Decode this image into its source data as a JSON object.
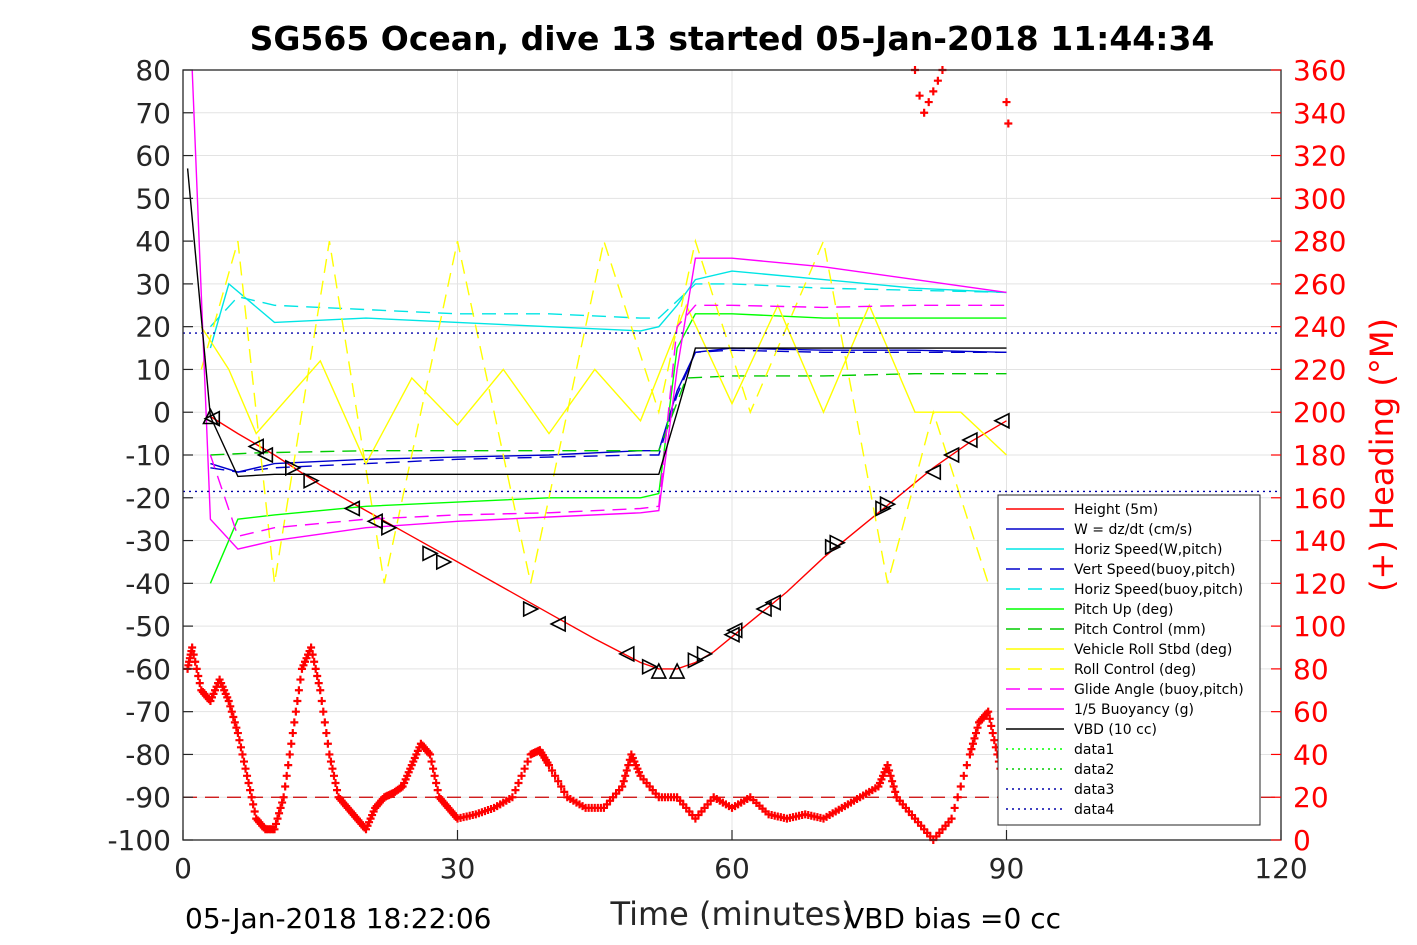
{
  "chart_data": {
    "type": "line",
    "title": "SG565 Ocean, dive 13 started 05-Jan-2018 11:44:34",
    "xlabel": "Time (minutes)",
    "ylabel_right": "(+) Heading (°M)",
    "xlim": [
      0,
      120
    ],
    "ylim": [
      -100,
      80
    ],
    "ylim_right": [
      0,
      360
    ],
    "x_ticks": [
      "0",
      "30",
      "60",
      "90",
      "120"
    ],
    "y_ticks": [
      "80",
      "70",
      "60",
      "50",
      "40",
      "30",
      "20",
      "10",
      "0",
      "-10",
      "-20",
      "-30",
      "-40",
      "-50",
      "-60",
      "-70",
      "-80",
      "-90",
      "-100"
    ],
    "y_ticks_right": [
      "360",
      "340",
      "320",
      "300",
      "280",
      "260",
      "240",
      "220",
      "200",
      "180",
      "160",
      "140",
      "120",
      "100",
      "80",
      "60",
      "40",
      "20",
      "0"
    ],
    "grid": true,
    "legend_position": "bottom-right",
    "footer_left": "05-Jan-2018 18:22:06",
    "footer_right": "VBD bias =0 cc",
    "series": [
      {
        "name": "Height (5m)",
        "color": "#ff0000",
        "style": "solid",
        "x": [
          3,
          6,
          10,
          15,
          20,
          25,
          30,
          35,
          40,
          45,
          50,
          52,
          54,
          56,
          58,
          62,
          66,
          70,
          74,
          78,
          82,
          86,
          90
        ],
        "y": [
          -1,
          -5,
          -10,
          -17,
          -23,
          -29,
          -35,
          -41,
          -47,
          -53,
          -58.5,
          -60,
          -60,
          -58.5,
          -56,
          -49,
          -42,
          -34,
          -27,
          -20,
          -13,
          -7,
          -2
        ]
      },
      {
        "name": "W = dz/dt (cm/s)",
        "color": "#0000cc",
        "style": "solid",
        "x": [
          3,
          6,
          10,
          20,
          30,
          40,
          50,
          52,
          54,
          56,
          60,
          70,
          80,
          90
        ],
        "y": [
          -12,
          -14,
          -12,
          -11,
          -10.5,
          -10,
          -9,
          -9,
          5,
          14,
          15,
          14.5,
          14.5,
          14
        ]
      },
      {
        "name": "Horiz Speed(W,pitch)",
        "color": "#00e5e5",
        "style": "solid",
        "x": [
          3,
          5,
          10,
          20,
          30,
          40,
          50,
          52,
          54,
          56,
          60,
          70,
          80,
          90
        ],
        "y": [
          15,
          30,
          21,
          22,
          21,
          20,
          19,
          20,
          25,
          31,
          33,
          31,
          29,
          28
        ]
      },
      {
        "name": "Vert Speed(buoy,pitch)",
        "color": "#0000cc",
        "style": "dashed",
        "x": [
          3,
          6,
          10,
          20,
          30,
          40,
          50,
          52,
          54,
          56,
          60,
          70,
          80,
          90
        ],
        "y": [
          -13,
          -14,
          -13,
          -12,
          -11,
          -10.5,
          -10,
          -10,
          4,
          14,
          14.5,
          14,
          14,
          14
        ]
      },
      {
        "name": "Horiz Speed(buoy,pitch)",
        "color": "#00e5e5",
        "style": "dashed",
        "x": [
          3,
          6,
          10,
          20,
          30,
          40,
          50,
          52,
          54,
          56,
          60,
          70,
          80,
          90
        ],
        "y": [
          20,
          27,
          25,
          24,
          23,
          23,
          22,
          22,
          26,
          30,
          30,
          29,
          28.5,
          28
        ]
      },
      {
        "name": "Pitch Up (deg)",
        "color": "#00ff00",
        "style": "solid",
        "x": [
          3,
          6,
          10,
          20,
          30,
          40,
          50,
          52,
          54,
          56,
          60,
          70,
          80,
          90
        ],
        "y": [
          -40,
          -25,
          -24,
          -22,
          -21,
          -20,
          -20,
          -19,
          15,
          23,
          23,
          22,
          22,
          22
        ]
      },
      {
        "name": "Pitch Control (mm)",
        "color": "#00cc00",
        "style": "dashed",
        "x": [
          3,
          8,
          20,
          30,
          40,
          50,
          52,
          55,
          60,
          70,
          80,
          90
        ],
        "y": [
          -10,
          -9.5,
          -9,
          -9,
          -9,
          -9,
          -9,
          8,
          8.5,
          8.5,
          9,
          9
        ]
      },
      {
        "name": "Vehicle Roll Stbd (deg)",
        "color": "#ffff00",
        "style": "solid",
        "x": [
          2,
          5,
          8,
          15,
          20,
          25,
          30,
          35,
          40,
          45,
          50,
          55,
          60,
          65,
          70,
          75,
          80,
          85,
          90
        ],
        "y": [
          20,
          10,
          -5,
          12,
          -12,
          8,
          -3,
          10,
          -5,
          10,
          -2,
          25,
          2,
          25,
          0,
          25,
          0,
          0,
          -10
        ]
      },
      {
        "name": "Roll Control (deg)",
        "color": "#ffff00",
        "style": "dashed",
        "x": [
          2,
          6,
          10,
          16,
          22,
          30,
          38,
          46,
          52,
          56,
          62,
          70,
          77,
          82,
          88
        ],
        "y": [
          10,
          40,
          -40,
          40,
          -40,
          40,
          -40,
          40,
          0,
          40,
          0,
          40,
          -40,
          0,
          -40
        ]
      },
      {
        "name": "Glide Angle (buoy,pitch)",
        "color": "#ff00ff",
        "style": "dashed",
        "x": [
          3,
          6,
          10,
          20,
          30,
          40,
          50,
          52,
          54,
          56,
          60,
          70,
          80,
          90
        ],
        "y": [
          -10,
          -29,
          -27,
          -25,
          -24,
          -23.5,
          -22.5,
          -22,
          20,
          25,
          25,
          24.5,
          25,
          25
        ]
      },
      {
        "name": "1/5 Buoyancy (g)",
        "color": "#ff00ff",
        "style": "solid",
        "x": [
          1,
          3,
          6,
          10,
          20,
          30,
          40,
          50,
          52,
          54,
          56,
          60,
          70,
          80,
          90
        ],
        "y": [
          80,
          -25,
          -32,
          -30,
          -27,
          -25.5,
          -24.5,
          -23.5,
          -23,
          10,
          36,
          36,
          34,
          31,
          28
        ]
      },
      {
        "name": "VBD (10 cc)",
        "color": "#000000",
        "style": "solid",
        "x": [
          0.5,
          3,
          6,
          10,
          20,
          30,
          40,
          50,
          52,
          54,
          56,
          60,
          70,
          80,
          90
        ],
        "y": [
          57,
          -1,
          -15,
          -14.5,
          -14.5,
          -14.5,
          -14.5,
          -14.5,
          -14.5,
          0,
          15,
          15,
          15,
          15,
          15
        ]
      },
      {
        "name": "data1",
        "color": "#00ff00",
        "style": "dotted",
        "x": [],
        "y": []
      },
      {
        "name": "data2",
        "color": "#00cc00",
        "style": "dotted",
        "x": [],
        "y": []
      },
      {
        "name": "data3",
        "color": "#0000aa",
        "style": "dotted",
        "x": [
          0,
          120
        ],
        "y": [
          18.5,
          18.5
        ]
      },
      {
        "name": "data4",
        "color": "#0000aa",
        "style": "dotted",
        "x": [
          0,
          120
        ],
        "y": [
          -18.5,
          -18.5
        ]
      }
    ],
    "heading": {
      "axis": "right",
      "color": "#ff0000",
      "marker": "+",
      "x": [
        0.5,
        1,
        2,
        3,
        4,
        5,
        6,
        7,
        8,
        9,
        10,
        11,
        12,
        13,
        14,
        15,
        16,
        17,
        18,
        19,
        20,
        21,
        22,
        23,
        24,
        25,
        26,
        27,
        28,
        29,
        30,
        32,
        34,
        36,
        38,
        39,
        40,
        42,
        44,
        46,
        48,
        49,
        50,
        52,
        54,
        56,
        58,
        60,
        62,
        64,
        66,
        68,
        70,
        72,
        74,
        76,
        77,
        78,
        80,
        82,
        84,
        86,
        87,
        88,
        89,
        90
      ],
      "y": [
        80,
        90,
        70,
        65,
        75,
        65,
        50,
        30,
        10,
        5,
        5,
        20,
        50,
        80,
        90,
        70,
        40,
        20,
        15,
        10,
        5,
        15,
        20,
        22,
        25,
        35,
        45,
        40,
        20,
        15,
        10,
        12,
        15,
        20,
        40,
        42,
        35,
        20,
        15,
        15,
        25,
        40,
        30,
        20,
        20,
        10,
        20,
        15,
        20,
        12,
        10,
        12,
        10,
        15,
        20,
        25,
        35,
        20,
        10,
        0,
        10,
        40,
        55,
        60,
        40,
        20
      ],
      "extra_points": {
        "x": [
          80,
          80.5,
          81,
          81.5,
          82,
          82.5,
          83,
          90,
          90.2
        ],
        "y": [
          360,
          348,
          340,
          345,
          350,
          355,
          360,
          345,
          335
        ]
      }
    },
    "reference_line": {
      "axis": "right",
      "y": 20,
      "color": "#cc0000",
      "style": "dashed"
    },
    "markers": {
      "symbol": "triangle",
      "x": [
        3,
        3.2,
        8,
        9,
        12,
        14,
        18.5,
        21,
        22.5,
        27,
        28.5,
        38,
        41,
        48.5,
        51,
        52,
        54,
        56,
        57,
        60,
        60.3,
        63.5,
        64.5,
        71,
        71.5,
        76.5,
        77,
        82,
        84,
        86,
        89.5
      ],
      "y": [
        -1,
        -1.5,
        -8,
        -10,
        -13,
        -16,
        -22.5,
        -25.5,
        -27,
        -33,
        -35,
        -46,
        -49.5,
        -56.5,
        -59.5,
        -60.5,
        -60.5,
        -58,
        -56.5,
        -52,
        -51,
        -46,
        -44.5,
        -31.5,
        -30.5,
        -22.5,
        -21.5,
        -14,
        -10,
        -6.5,
        -2
      ],
      "dir": [
        "u",
        "l",
        "l",
        "l",
        "r",
        "r",
        "l",
        "l",
        "r",
        "r",
        "r",
        "r",
        "l",
        "l",
        "r",
        "u",
        "u",
        "r",
        "r",
        "l",
        "l",
        "l",
        "l",
        "r",
        "r",
        "r",
        "r",
        "l",
        "l",
        "l",
        "l"
      ]
    }
  }
}
